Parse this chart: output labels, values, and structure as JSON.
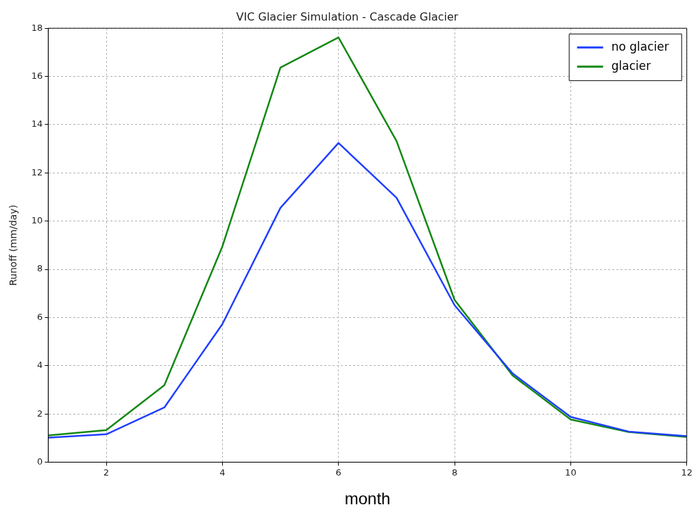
{
  "chart_data": {
    "type": "line",
    "title": "VIC Glacier Simulation - Cascade Glacier",
    "xlabel": "month",
    "ylabel": "Runoff (mm/day)",
    "x": [
      1,
      2,
      3,
      4,
      5,
      6,
      7,
      8,
      9,
      10,
      11,
      12
    ],
    "series": [
      {
        "name": "no glacier",
        "color": "#1f3fff",
        "values": [
          1.02,
          1.16,
          2.27,
          5.73,
          10.55,
          13.24,
          10.97,
          6.51,
          3.68,
          1.88,
          1.27,
          1.08
        ]
      },
      {
        "name": "glacier",
        "color": "#118811",
        "values": [
          1.11,
          1.33,
          3.19,
          8.95,
          16.37,
          17.62,
          13.32,
          6.73,
          3.6,
          1.77,
          1.25,
          1.05
        ]
      }
    ],
    "xlim": [
      1,
      12
    ],
    "xticks": [
      2,
      4,
      6,
      8,
      10,
      12
    ],
    "ylim": [
      0,
      18
    ],
    "yticks": [
      0,
      2,
      4,
      6,
      8,
      10,
      12,
      14,
      16,
      18
    ],
    "grid": true,
    "legend": "top right",
    "marker": "none",
    "line_style": "solid"
  }
}
